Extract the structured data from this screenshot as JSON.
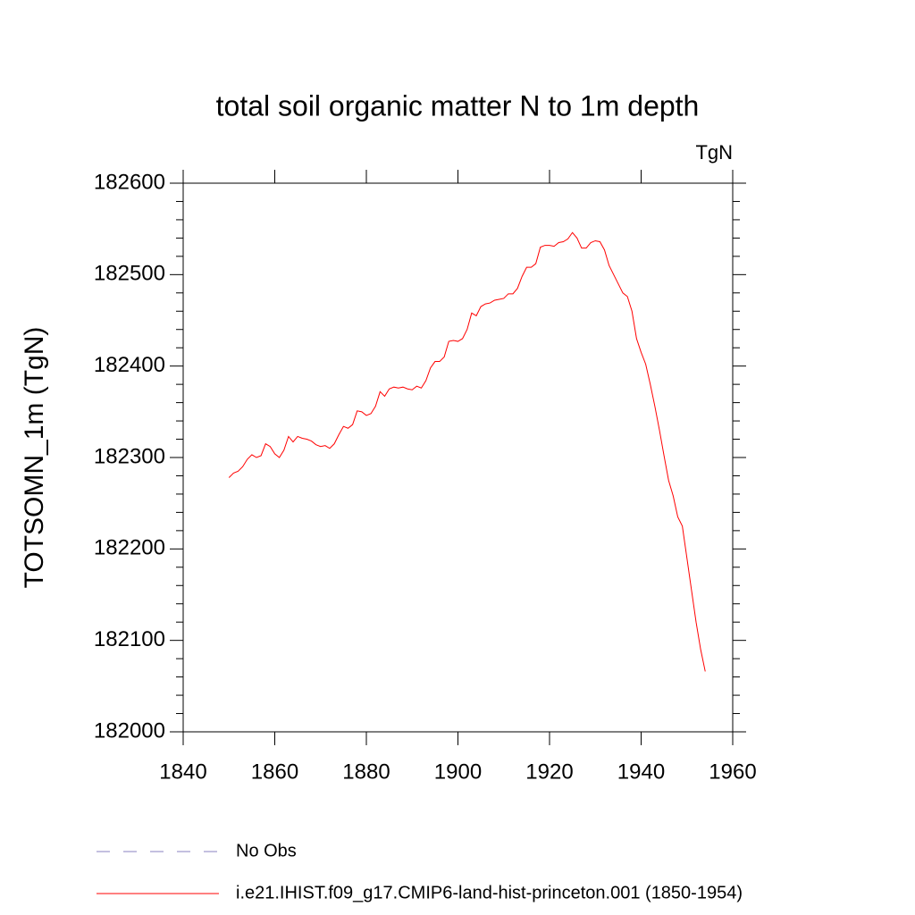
{
  "chart_data": {
    "type": "line",
    "title": "total soil organic matter N to 1m depth",
    "units_label": "TgN",
    "ylabel": "TOTSOMN_1m  (TgN)",
    "xlim": [
      1840,
      1960
    ],
    "xticks": [
      1840,
      1860,
      1880,
      1900,
      1920,
      1940,
      1960
    ],
    "ylim": [
      182000,
      182600
    ],
    "yticks": [
      182000,
      182100,
      182200,
      182300,
      182400,
      182500,
      182600
    ],
    "yminor_ticks": [
      182020,
      182040,
      182060,
      182080,
      182120,
      182140,
      182160,
      182180,
      182220,
      182240,
      182260,
      182280,
      182320,
      182340,
      182360,
      182380,
      182420,
      182440,
      182460,
      182480,
      182520,
      182540,
      182560,
      182580
    ],
    "legend": [
      {
        "name": "No Obs",
        "color": "#8a80c0",
        "style": "dashed"
      }
    ],
    "x": [
      1850,
      1851,
      1852,
      1853,
      1854,
      1855,
      1856,
      1857,
      1858,
      1859,
      1860,
      1861,
      1862,
      1863,
      1864,
      1865,
      1866,
      1867,
      1868,
      1869,
      1870,
      1871,
      1872,
      1873,
      1874,
      1875,
      1876,
      1877,
      1878,
      1879,
      1880,
      1881,
      1882,
      1883,
      1884,
      1885,
      1886,
      1887,
      1888,
      1889,
      1890,
      1891,
      1892,
      1893,
      1894,
      1895,
      1896,
      1897,
      1898,
      1899,
      1900,
      1901,
      1902,
      1903,
      1904,
      1905,
      1906,
      1907,
      1908,
      1909,
      1910,
      1911,
      1912,
      1913,
      1914,
      1915,
      1916,
      1917,
      1918,
      1919,
      1920,
      1921,
      1922,
      1923,
      1924,
      1925,
      1926,
      1927,
      1928,
      1929,
      1930,
      1931,
      1932,
      1933,
      1934,
      1935,
      1936,
      1937,
      1938,
      1939,
      1940,
      1941,
      1942,
      1943,
      1944,
      1945,
      1946,
      1947,
      1948,
      1949,
      1950,
      1951,
      1952,
      1953,
      1954
    ],
    "series": [
      {
        "name": "i.e21.IHIST.f09_g17.CMIP6-land-hist-princeton.001 (1850-1954)",
        "color": "#ff0000",
        "values": [
          182278,
          182283,
          182285,
          182290,
          182298,
          182303,
          182300,
          182302,
          182315,
          182312,
          182304,
          182300,
          182308,
          182323,
          182317,
          182323,
          182321,
          182320,
          182318,
          182314,
          182312,
          182313,
          182310,
          182315,
          182325,
          182334,
          182332,
          182336,
          182351,
          182350,
          182346,
          182348,
          182356,
          182372,
          182367,
          182375,
          182377,
          182376,
          182377,
          182375,
          182374,
          182378,
          182376,
          182384,
          182398,
          182405,
          182405,
          182410,
          182427,
          182428,
          182427,
          182430,
          182440,
          182458,
          182455,
          182465,
          182468,
          182469,
          182472,
          182473,
          182474,
          182479,
          182479,
          182485,
          182498,
          182508,
          182508,
          182512,
          182530,
          182532,
          182532,
          182531,
          182535,
          182536,
          182539,
          182546,
          182540,
          182529,
          182529,
          182535,
          182537,
          182536,
          182527,
          182510,
          182500,
          182490,
          182480,
          182476,
          182460,
          182430,
          182415,
          182402,
          182380,
          182356,
          182330,
          182302,
          182275,
          182258,
          182235,
          182225,
          182190,
          182155,
          182120,
          182090,
          182066
        ]
      }
    ]
  }
}
